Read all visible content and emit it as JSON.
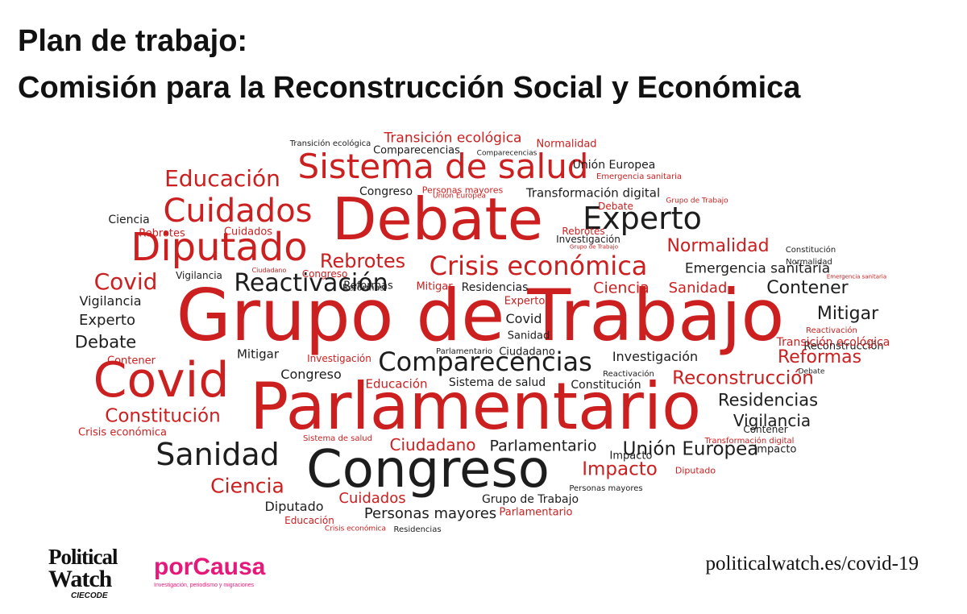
{
  "header": {
    "title_line1": "Plan de trabajo:",
    "title_line2": "Comisión para la Reconstrucción Social y Económica"
  },
  "colors": {
    "red": "#cc1f1f",
    "dark": "#1d1d1d",
    "brand_pink": "#e6197a"
  },
  "wordcloud": {
    "words": [
      {
        "text": "Grupo de Trabajo",
        "color": "red"
      },
      {
        "text": "Parlamentario",
        "color": "red"
      },
      {
        "text": "Debate",
        "color": "red"
      },
      {
        "text": "Congreso",
        "color": "dark"
      },
      {
        "text": "Covid",
        "color": "red"
      },
      {
        "text": "Sistema de salud",
        "color": "red"
      },
      {
        "text": "Diputado",
        "color": "red"
      },
      {
        "text": "Cuidados",
        "color": "red"
      },
      {
        "text": "Experto",
        "color": "dark"
      },
      {
        "text": "Comparecencias",
        "color": "dark"
      },
      {
        "text": "Crisis económica",
        "color": "red"
      },
      {
        "text": "Reactivación",
        "color": "dark"
      },
      {
        "text": "Sanidad",
        "color": "dark"
      },
      {
        "text": "Educación",
        "color": "red"
      },
      {
        "text": "Rebrotes",
        "color": "red"
      },
      {
        "text": "Covid",
        "color": "red"
      },
      {
        "text": "Normalidad",
        "color": "red"
      },
      {
        "text": "Emergencia sanitaria",
        "color": "dark"
      },
      {
        "text": "Contener",
        "color": "dark"
      },
      {
        "text": "Mitigar",
        "color": "dark"
      },
      {
        "text": "Reformas",
        "color": "red"
      },
      {
        "text": "Reconstrucción",
        "color": "red"
      },
      {
        "text": "Residencias",
        "color": "dark"
      },
      {
        "text": "Vigilancia",
        "color": "dark"
      },
      {
        "text": "Unión Europea",
        "color": "dark"
      },
      {
        "text": "Impacto",
        "color": "red"
      },
      {
        "text": "Ciudadano",
        "color": "red"
      },
      {
        "text": "Parlamentario",
        "color": "dark"
      },
      {
        "text": "Constitución",
        "color": "red"
      },
      {
        "text": "Ciencia",
        "color": "red"
      },
      {
        "text": "Personas mayores",
        "color": "dark"
      },
      {
        "text": "Cuidados",
        "color": "red"
      },
      {
        "text": "Diputado",
        "color": "dark"
      },
      {
        "text": "Grupo de Trabajo",
        "color": "dark"
      },
      {
        "text": "Transformación digital",
        "color": "dark"
      },
      {
        "text": "Investigación",
        "color": "dark"
      },
      {
        "text": "Ciencia",
        "color": "red"
      },
      {
        "text": "Sanidad",
        "color": "red"
      },
      {
        "text": "Transición ecológica",
        "color": "red"
      },
      {
        "text": "Debate",
        "color": "dark"
      },
      {
        "text": "Experto",
        "color": "dark"
      },
      {
        "text": "Vigilancia",
        "color": "dark"
      },
      {
        "text": "Covid",
        "color": "dark"
      },
      {
        "text": "Sanidad",
        "color": "dark"
      },
      {
        "text": "Ciudadano",
        "color": "dark"
      },
      {
        "text": "Congreso",
        "color": "dark"
      },
      {
        "text": "Educación",
        "color": "red"
      },
      {
        "text": "Sistema de salud",
        "color": "dark"
      },
      {
        "text": "Constitución",
        "color": "dark"
      },
      {
        "text": "Mitigar",
        "color": "dark"
      },
      {
        "text": "Residencias",
        "color": "dark"
      },
      {
        "text": "Experto",
        "color": "red"
      },
      {
        "text": "Mitigar",
        "color": "red"
      },
      {
        "text": "Reformas",
        "color": "dark"
      },
      {
        "text": "Impacto",
        "color": "dark"
      },
      {
        "text": "Congreso",
        "color": "dark"
      },
      {
        "text": "Comparecencias",
        "color": "dark"
      },
      {
        "text": "Ciencia",
        "color": "dark"
      },
      {
        "text": "Reconstrucción",
        "color": "dark"
      },
      {
        "text": "Unión Europea",
        "color": "dark"
      },
      {
        "text": "Normalidad",
        "color": "red"
      },
      {
        "text": "Transición ecológica",
        "color": "dark"
      },
      {
        "text": "Comparecencias",
        "color": "dark"
      },
      {
        "text": "Emergencia sanitaria",
        "color": "red"
      },
      {
        "text": "Personas mayores",
        "color": "red"
      },
      {
        "text": "Unión Europea",
        "color": "red"
      },
      {
        "text": "Debate",
        "color": "red"
      },
      {
        "text": "Grupo de Trabajo",
        "color": "red"
      },
      {
        "text": "Rebrotes",
        "color": "red"
      },
      {
        "text": "Cuidados",
        "color": "red"
      },
      {
        "text": "Rebrotes",
        "color": "red"
      },
      {
        "text": "Investigación",
        "color": "dark"
      },
      {
        "text": "Grupo de Trabajo",
        "color": "red"
      },
      {
        "text": "Ciudadano",
        "color": "red"
      },
      {
        "text": "Reformas",
        "color": "dark"
      },
      {
        "text": "Congreso",
        "color": "red"
      },
      {
        "text": "Vigilancia",
        "color": "dark"
      },
      {
        "text": "Contener",
        "color": "red"
      },
      {
        "text": "Investigación",
        "color": "red"
      },
      {
        "text": "Parlamentario",
        "color": "dark"
      },
      {
        "text": "Reactivación",
        "color": "dark"
      },
      {
        "text": "Crisis económica",
        "color": "red"
      },
      {
        "text": "Sistema de salud",
        "color": "red"
      },
      {
        "text": "Contener",
        "color": "dark"
      },
      {
        "text": "Transformación digital",
        "color": "red"
      },
      {
        "text": "Emergencia sanitaria",
        "color": "red"
      },
      {
        "text": "Impacto",
        "color": "dark"
      },
      {
        "text": "Diputado",
        "color": "red"
      },
      {
        "text": "Personas mayores",
        "color": "dark"
      },
      {
        "text": "Educación",
        "color": "red"
      },
      {
        "text": "Parlamentario",
        "color": "red"
      },
      {
        "text": "Crisis económica",
        "color": "red"
      },
      {
        "text": "Residencias",
        "color": "dark"
      },
      {
        "text": "Constitución",
        "color": "dark"
      },
      {
        "text": "Normalidad",
        "color": "dark"
      },
      {
        "text": "Reactivación",
        "color": "red"
      },
      {
        "text": "Transición ecológica",
        "color": "red"
      },
      {
        "text": "Debate",
        "color": "dark"
      }
    ]
  },
  "footer": {
    "logo_political_line1": "Political",
    "logo_political_line2": "Watch",
    "logo_political_sub": "CIECODE",
    "logo_porcausa_name": "porCausa",
    "logo_porcausa_tagline": "Investigación, periodismo y migraciones",
    "url": "politicalwatch.es/covid-19"
  }
}
